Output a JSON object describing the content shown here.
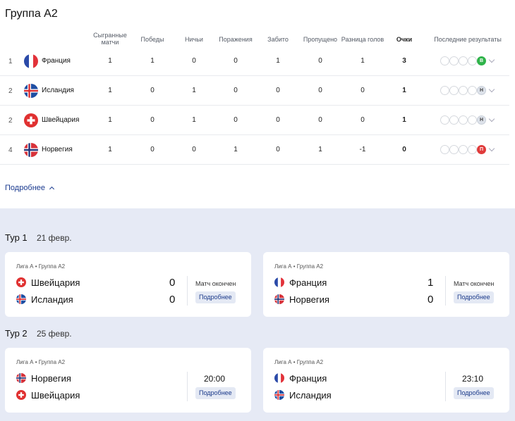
{
  "group": {
    "title": "Группа А2"
  },
  "table": {
    "headers": {
      "played": "Сыгранные матчи",
      "wins": "Победы",
      "draws": "Ничьи",
      "losses": "Поражения",
      "scored": "Забито",
      "conceded": "Пропущено",
      "diff": "Разница голов",
      "points": "Очки",
      "form": "Последние результаты"
    },
    "rows": [
      {
        "pos": "1",
        "team": "Франция",
        "flag": "france-flag-icon",
        "played": "1",
        "wins": "1",
        "draws": "0",
        "losses": "0",
        "scored": "1",
        "conceded": "0",
        "diff": "1",
        "points": "3",
        "result": "В"
      },
      {
        "pos": "2",
        "team": "Исландия",
        "flag": "iceland-flag-icon",
        "played": "1",
        "wins": "0",
        "draws": "1",
        "losses": "0",
        "scored": "0",
        "conceded": "0",
        "diff": "0",
        "points": "1",
        "result": "Н"
      },
      {
        "pos": "2",
        "team": "Швейцария",
        "flag": "switzerland-flag-icon",
        "played": "1",
        "wins": "0",
        "draws": "1",
        "losses": "0",
        "scored": "0",
        "conceded": "0",
        "diff": "0",
        "points": "1",
        "result": "Н"
      },
      {
        "pos": "4",
        "team": "Норвегия",
        "flag": "norway-flag-icon",
        "played": "1",
        "wins": "0",
        "draws": "0",
        "losses": "1",
        "scored": "0",
        "conceded": "1",
        "diff": "-1",
        "points": "0",
        "result": "П"
      }
    ]
  },
  "more_link": "Подробнее",
  "rounds": [
    {
      "title": "Тур 1",
      "date": "21 февр.",
      "matches": [
        {
          "league": "Лига А • Группа А2",
          "home": "Швейцария",
          "away": "Исландия",
          "home_score": "0",
          "away_score": "0",
          "status": "Матч окончен",
          "button": "Подробнее"
        },
        {
          "league": "Лига А • Группа А2",
          "home": "Франция",
          "away": "Норвегия",
          "home_score": "1",
          "away_score": "0",
          "status": "Матч окончен",
          "button": "Подробнее"
        }
      ]
    },
    {
      "title": "Тур 2",
      "date": "25 февр.",
      "matches": [
        {
          "league": "Лига А • Группа А2",
          "home": "Норвегия",
          "away": "Швейцария",
          "time": "20:00",
          "button": "Подробнее"
        },
        {
          "league": "Лига А • Группа А2",
          "home": "Франция",
          "away": "Исландия",
          "time": "23:10",
          "button": "Подробнее"
        }
      ]
    }
  ],
  "colors": {
    "win": "#2fb34a",
    "draw": "#dde2ea",
    "loss": "#e03b3b",
    "accent": "#1a3a8f",
    "matches_bg": "#e6eaf5"
  }
}
